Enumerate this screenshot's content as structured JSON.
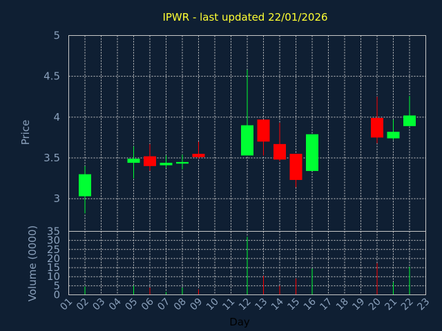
{
  "chart_data": {
    "type": "candlestick",
    "title": "IPWR - last updated 22/01/2026",
    "xlabel": "Day",
    "days": [
      "01",
      "02",
      "03",
      "04",
      "05",
      "06",
      "07",
      "08",
      "09",
      "10",
      "11",
      "12",
      "13",
      "14",
      "15",
      "16",
      "17",
      "18",
      "19",
      "20",
      "21",
      "22",
      "23"
    ],
    "price": {
      "ylabel": "Price",
      "ylim": [
        2.6,
        5
      ],
      "yticks": [
        "3",
        "3.5",
        "4",
        "4.5",
        "5"
      ],
      "candles": [
        {
          "day": "02",
          "open": 3.03,
          "close": 3.3,
          "high": 3.4,
          "low": 2.82
        },
        {
          "day": "05",
          "open": 3.44,
          "close": 3.49,
          "high": 3.64,
          "low": 3.25
        },
        {
          "day": "06",
          "open": 3.52,
          "close": 3.4,
          "high": 3.67,
          "low": 3.34
        },
        {
          "day": "07",
          "open": 3.41,
          "close": 3.44,
          "high": 3.53,
          "low": 3.38
        },
        {
          "day": "08",
          "open": 3.43,
          "close": 3.45,
          "high": 3.54,
          "low": 3.36
        },
        {
          "day": "09",
          "open": 3.55,
          "close": 3.51,
          "high": 3.7,
          "low": 3.49
        },
        {
          "day": "12",
          "open": 3.53,
          "close": 3.9,
          "high": 4.58,
          "low": 3.53
        },
        {
          "day": "13",
          "open": 3.97,
          "close": 3.7,
          "high": 3.97,
          "low": 3.53
        },
        {
          "day": "14",
          "open": 3.67,
          "close": 3.48,
          "high": 3.93,
          "low": 3.46
        },
        {
          "day": "15",
          "open": 3.55,
          "close": 3.23,
          "high": 3.55,
          "low": 3.14
        },
        {
          "day": "16",
          "open": 3.34,
          "close": 3.79,
          "high": 3.79,
          "low": 3.34
        },
        {
          "day": "20",
          "open": 3.99,
          "close": 3.75,
          "high": 4.25,
          "low": 3.68
        },
        {
          "day": "21",
          "open": 3.74,
          "close": 3.82,
          "high": 3.97,
          "low": 3.72
        },
        {
          "day": "22",
          "open": 3.89,
          "close": 4.02,
          "high": 4.26,
          "low": 3.89
        }
      ]
    },
    "volume": {
      "ylabel": "Volume (0000)",
      "ylim": [
        0,
        35
      ],
      "yticks": [
        "0",
        "5",
        "10",
        "15",
        "20",
        "25",
        "30",
        "35"
      ],
      "bars": [
        {
          "day": "02",
          "value": 4.5,
          "direction": "up"
        },
        {
          "day": "05",
          "value": 5,
          "direction": "up"
        },
        {
          "day": "06",
          "value": 4,
          "direction": "down"
        },
        {
          "day": "07",
          "value": 1.5,
          "direction": "up"
        },
        {
          "day": "08",
          "value": 4,
          "direction": "up"
        },
        {
          "day": "09",
          "value": 3,
          "direction": "down"
        },
        {
          "day": "12",
          "value": 32,
          "direction": "up"
        },
        {
          "day": "13",
          "value": 10.5,
          "direction": "down"
        },
        {
          "day": "14",
          "value": 5,
          "direction": "down"
        },
        {
          "day": "15",
          "value": 9,
          "direction": "down"
        },
        {
          "day": "16",
          "value": 14.5,
          "direction": "up"
        },
        {
          "day": "20",
          "value": 17.5,
          "direction": "down"
        },
        {
          "day": "21",
          "value": 7,
          "direction": "up"
        },
        {
          "day": "22",
          "value": 15.5,
          "direction": "up"
        }
      ]
    },
    "colors": {
      "background": "#0f1f33",
      "up": "#00ff33",
      "down": "#ff0000",
      "grid": "#c8c8c8",
      "title": "#ffff33",
      "ticks": "#8aa0bb",
      "xlabel": "#000000"
    },
    "grid": true
  }
}
